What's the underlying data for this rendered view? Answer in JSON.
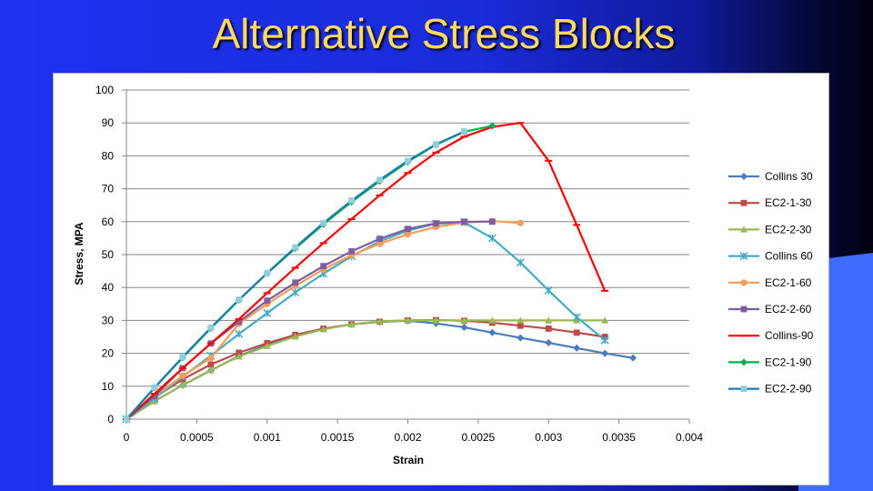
{
  "slide": {
    "title": "Alternative Stress Blocks",
    "background_color": "#1f32f0",
    "title_color": "#ffd966",
    "accent_color": "#3f6cff"
  },
  "chart_data": {
    "type": "line",
    "xlabel": "Strain",
    "ylabel": "Stress, MPA",
    "xlim": [
      0,
      0.004
    ],
    "ylim": [
      0,
      100
    ],
    "x_ticks": [
      "0",
      "0.0005",
      "0.001",
      "0.0015",
      "0.002",
      "0.0025",
      "0.003",
      "0.0035",
      "0.004"
    ],
    "y_ticks": [
      "0",
      "10",
      "20",
      "30",
      "40",
      "50",
      "60",
      "70",
      "80",
      "90",
      "100"
    ],
    "x_tick_values": [
      0,
      0.0005,
      0.001,
      0.0015,
      0.002,
      0.0025,
      0.003,
      0.0035,
      0.004
    ],
    "y_tick_values": [
      0,
      10,
      20,
      30,
      40,
      50,
      60,
      70,
      80,
      90,
      100
    ],
    "grid": "horizontal",
    "legend_position": "right",
    "series": [
      {
        "name": "Collins 30",
        "color": "#4a7ebb",
        "marker": "diamond",
        "x": [
          0,
          0.0002,
          0.0004,
          0.0006,
          0.0008,
          0.001,
          0.0012,
          0.0014,
          0.0016,
          0.0018,
          0.002,
          0.0022,
          0.0024,
          0.0026,
          0.0028,
          0.003,
          0.0032,
          0.0034,
          0.0036
        ],
        "y": [
          0,
          5.5,
          10.3,
          14.8,
          19.2,
          22.6,
          25.5,
          27.5,
          28.8,
          29.6,
          29.9,
          29.1,
          27.9,
          26.3,
          24.7,
          23.2,
          21.6,
          20.0,
          18.6
        ]
      },
      {
        "name": "EC2-1-30",
        "color": "#be4b48",
        "marker": "square",
        "x": [
          0,
          0.0002,
          0.0004,
          0.0006,
          0.0008,
          0.001,
          0.0012,
          0.0014,
          0.0016,
          0.0018,
          0.002,
          0.0022,
          0.0024,
          0.0026,
          0.0028,
          0.003,
          0.0032,
          0.0034
        ],
        "y": [
          0,
          6.6,
          12.1,
          16.6,
          20.2,
          23.1,
          25.6,
          27.5,
          28.8,
          29.6,
          30.0,
          30.1,
          29.9,
          29.3,
          28.4,
          27.5,
          26.3,
          25.0
        ]
      },
      {
        "name": "EC2-2-30",
        "color": "#98b954",
        "marker": "triangle",
        "x": [
          0,
          0.0002,
          0.0004,
          0.0006,
          0.0008,
          0.001,
          0.0012,
          0.0014,
          0.0016,
          0.0018,
          0.002,
          0.0022,
          0.0024,
          0.0026,
          0.0028,
          0.003,
          0.0032,
          0.0034
        ],
        "y": [
          0,
          5.4,
          10.4,
          14.9,
          19.0,
          22.2,
          25.1,
          27.3,
          28.8,
          29.7,
          30.0,
          30.0,
          30.0,
          30.0,
          30.0,
          30.0,
          30.0,
          30.0
        ]
      },
      {
        "name": "Collins 60",
        "color": "#46aac5",
        "marker": "star",
        "x": [
          0,
          0.0002,
          0.0004,
          0.0006,
          0.0008,
          0.001,
          0.0012,
          0.0014,
          0.0016,
          0.0018,
          0.002,
          0.0022,
          0.0024,
          0.0026,
          0.0028,
          0.003,
          0.0032,
          0.0034
        ],
        "y": [
          0,
          6.3,
          12.9,
          19.3,
          25.9,
          32.2,
          38.5,
          44.2,
          49.5,
          54.0,
          57.3,
          59.4,
          59.8,
          55.0,
          47.6,
          39.1,
          31.0,
          24.0
        ]
      },
      {
        "name": "EC2-1-60",
        "color": "#f59d56",
        "marker": "circle",
        "x": [
          0,
          0.0002,
          0.0004,
          0.0006,
          0.0008,
          0.001,
          0.0012,
          0.0014,
          0.0016,
          0.0018,
          0.002,
          0.0022,
          0.0024,
          0.0026,
          0.0028
        ],
        "y": [
          0,
          6.9,
          13.2,
          18.6,
          29.0,
          35.0,
          40.5,
          45.5,
          49.8,
          53.3,
          56.2,
          58.4,
          59.7,
          60.2,
          59.6
        ]
      },
      {
        "name": "EC2-2-60",
        "color": "#7d5fa0",
        "marker": "square",
        "x": [
          0,
          0.0002,
          0.0004,
          0.0006,
          0.0008,
          0.001,
          0.0012,
          0.0014,
          0.0016,
          0.0018,
          0.002,
          0.0022,
          0.0024,
          0.0026
        ],
        "y": [
          0,
          7.0,
          15.5,
          23.0,
          29.6,
          36.0,
          41.5,
          46.5,
          51.0,
          54.8,
          57.8,
          59.5,
          60.0,
          60.0
        ]
      },
      {
        "name": "Collins-90",
        "color": "#ff0000",
        "marker": "dash",
        "x": [
          0,
          0.0002,
          0.0004,
          0.0006,
          0.0008,
          0.001,
          0.0012,
          0.0014,
          0.0016,
          0.0018,
          0.002,
          0.0022,
          0.0024,
          0.0026,
          0.0028,
          0.003,
          0.0032,
          0.0034
        ],
        "y": [
          0,
          7.7,
          15.5,
          23.0,
          30.4,
          38.3,
          46.0,
          53.5,
          60.8,
          68.0,
          74.8,
          81.0,
          85.8,
          88.8,
          90.0,
          78.5,
          59.0,
          39.0
        ]
      },
      {
        "name": "EC2-1-90",
        "color": "#00b050",
        "marker": "diamond",
        "x": [
          0,
          0.0002,
          0.0004,
          0.0006,
          0.0008,
          0.001,
          0.0012,
          0.0014,
          0.0016,
          0.0018,
          0.002,
          0.0022,
          0.0024,
          0.0026
        ],
        "y": [
          0,
          9.5,
          18.7,
          27.6,
          36.2,
          44.3,
          51.9,
          59.2,
          66.0,
          72.3,
          78.2,
          83.4,
          87.3,
          89.1
        ]
      },
      {
        "name": "EC2-2-90",
        "color": "#92cddc",
        "line_color": "#1f7fa8",
        "marker": "square",
        "x": [
          0,
          0.0002,
          0.0004,
          0.0006,
          0.0008,
          0.001,
          0.0012,
          0.0014,
          0.0016,
          0.0018,
          0.002,
          0.0022,
          0.0024
        ],
        "y": [
          0,
          9.6,
          18.9,
          27.8,
          36.3,
          44.4,
          52.2,
          59.6,
          66.4,
          72.7,
          78.5,
          83.5,
          87.4
        ]
      }
    ]
  }
}
